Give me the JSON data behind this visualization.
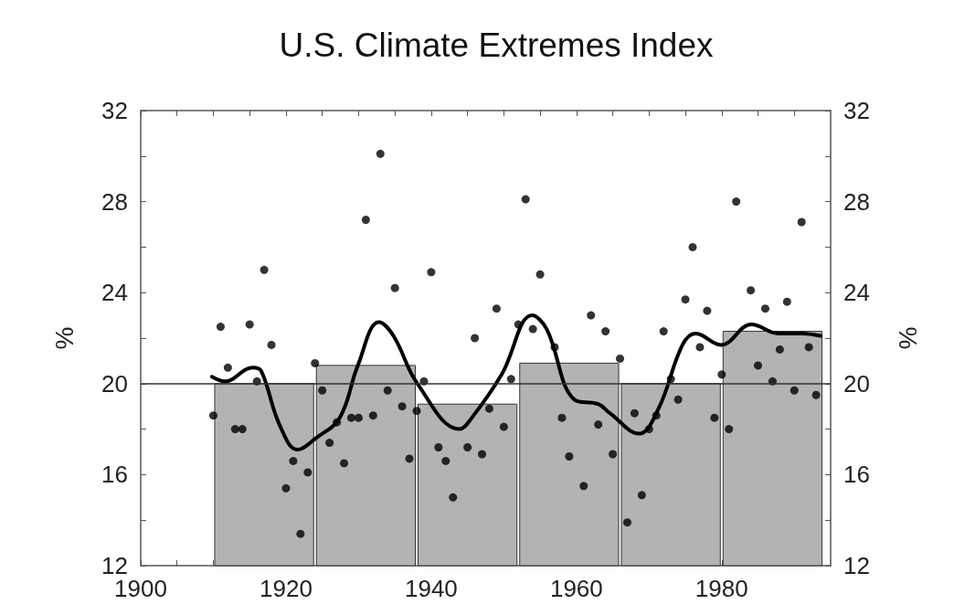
{
  "chart_data": {
    "type": "scatter",
    "title": "U.S. Climate Extremes Index",
    "ylabel": "%",
    "y2label": "%",
    "xlim": [
      1900,
      1995
    ],
    "xticks": [
      1900,
      {
        "value": 1905,
        "label": null
      },
      {
        "value": 1910,
        "label": null
      },
      {
        "value": 1915,
        "label": null
      },
      1920,
      {
        "value": 1925,
        "label": null
      },
      {
        "value": 1930,
        "label": null
      },
      {
        "value": 1935,
        "label": null
      },
      1940,
      {
        "value": 1945,
        "label": null
      },
      {
        "value": 1950,
        "label": null
      },
      {
        "value": 1955,
        "label": null
      },
      1960,
      {
        "value": 1965,
        "label": null
      },
      {
        "value": 1970,
        "label": null
      },
      {
        "value": 1975,
        "label": null
      },
      1980,
      {
        "value": 1985,
        "label": null
      },
      {
        "value": 1990,
        "label": null
      }
    ],
    "ylim": [
      12,
      32
    ],
    "yticks": [
      12,
      {
        "value": 14,
        "label": null
      },
      16,
      {
        "value": 18,
        "label": null
      },
      20,
      {
        "value": 22,
        "label": null
      },
      24,
      {
        "value": 26,
        "label": null
      },
      28,
      {
        "value": 30,
        "label": null
      },
      32
    ],
    "y2lim": [
      12,
      32
    ],
    "y2ticks": [
      12,
      {
        "value": 14,
        "label": null
      },
      16,
      {
        "value": 18,
        "label": null
      },
      20,
      {
        "value": 22,
        "label": null
      },
      24,
      {
        "value": 26,
        "label": null
      },
      28,
      {
        "value": 30,
        "label": null
      },
      32
    ],
    "grid": false,
    "marker": "circle",
    "ref_lines": [
      {
        "axis": "y",
        "value": 20,
        "color": "#333333"
      }
    ],
    "series": [
      {
        "type": "histogram",
        "color": "#b3b3b3",
        "bins": [
          1910,
          1924,
          1938,
          1952,
          1966,
          1980,
          1994
        ],
        "values": [
          20.0,
          20.8,
          19.1,
          20.9,
          20.0,
          22.3
        ]
      },
      {
        "color": "#000000",
        "x": [
          1910,
          1911,
          1912,
          1913,
          1914,
          1915,
          1916,
          1917,
          1918,
          1920,
          1921,
          1922,
          1923,
          1924,
          1925,
          1926,
          1927,
          1928,
          1929,
          1930,
          1931,
          1932,
          1933,
          1934,
          1935,
          1936,
          1937,
          1938,
          1939,
          1940,
          1941,
          1942,
          1943,
          1945,
          1946,
          1947,
          1948,
          1949,
          1950,
          1951,
          1952,
          1953,
          1954,
          1955,
          1957,
          1958,
          1959,
          1961,
          1962,
          1963,
          1964,
          1965,
          1966,
          1967,
          1968,
          1969,
          1970,
          1971,
          1972,
          1973,
          1974,
          1975,
          1976,
          1977,
          1978,
          1979,
          1980,
          1981,
          1982,
          1984,
          1985,
          1986,
          1987,
          1988,
          1989,
          1990,
          1991,
          1992,
          1993
        ],
        "values": [
          18.6,
          22.5,
          20.7,
          18.0,
          18.0,
          22.6,
          20.1,
          25.0,
          21.7,
          15.4,
          16.6,
          13.4,
          16.1,
          20.9,
          19.7,
          17.4,
          18.3,
          16.5,
          18.5,
          18.5,
          27.2,
          18.6,
          30.1,
          19.7,
          24.2,
          19.0,
          16.7,
          18.8,
          20.1,
          24.9,
          17.2,
          16.6,
          15.0,
          17.2,
          22.0,
          16.9,
          18.9,
          23.3,
          18.1,
          20.2,
          22.6,
          28.1,
          22.4,
          24.8,
          21.6,
          18.5,
          16.8,
          15.5,
          23.0,
          18.2,
          22.3,
          16.9,
          21.1,
          13.9,
          18.7,
          15.1,
          18.0,
          18.6,
          22.3,
          20.2,
          19.3,
          23.7,
          26.0,
          21.6,
          23.2,
          18.5,
          20.4,
          18.0,
          28.0,
          24.1,
          20.8,
          23.3,
          20.1,
          21.5,
          23.6,
          19.7,
          27.1,
          21.6,
          19.5
        ]
      },
      {
        "type": "line",
        "color": "#000000",
        "marker": "none",
        "line_style": "solid",
        "x": [
          1909.8,
          1911.6,
          1915.4,
          1916.6,
          1919.1,
          1921.6,
          1924.1,
          1927.4,
          1929.9,
          1932.8,
          1934.8,
          1938.1,
          1943.9,
          1945.6,
          1949.7,
          1953.9,
          1955.9,
          1959.7,
          1963.0,
          1964.6,
          1968.6,
          1971.3,
          1974.6,
          1976.4,
          1979.9,
          1984.1,
          1987.8,
          1991.1,
          1993.6
        ],
        "values": [
          20.3,
          20.1,
          20.7,
          20.55,
          18.2,
          17.1,
          17.6,
          18.5,
          20.8,
          22.7,
          22.1,
          20.0,
          18.0,
          18.5,
          20.4,
          23.0,
          22.4,
          19.3,
          19.1,
          18.7,
          17.8,
          18.9,
          21.7,
          22.2,
          21.7,
          22.6,
          22.2,
          22.2,
          22.1
        ]
      }
    ]
  }
}
